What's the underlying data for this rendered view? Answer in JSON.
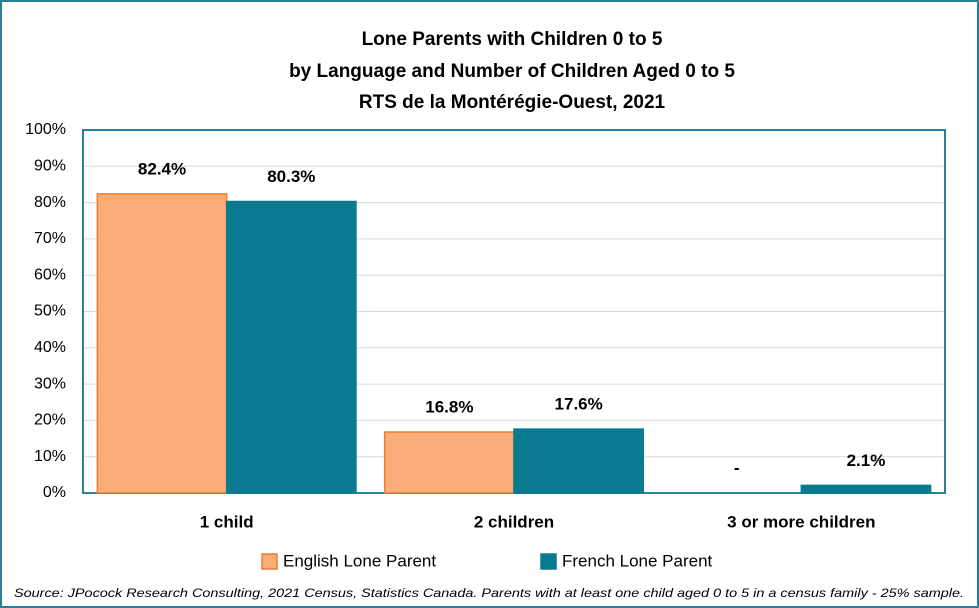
{
  "chart_data": {
    "type": "bar",
    "title": [
      "Lone Parents with Children 0 to 5",
      "by Language and Number of Children Aged 0 to 5",
      "RTS de la Montérégie-Ouest, 2021"
    ],
    "categories": [
      "1 child",
      "2 children",
      "3 or more children"
    ],
    "series": [
      {
        "name": "English Lone Parent",
        "color": "#f9ad78",
        "edge": "#ed7d31",
        "values": [
          82.4,
          16.8,
          null
        ],
        "value_labels": [
          "82.4%",
          "16.8%",
          "-"
        ]
      },
      {
        "name": "French Lone Parent",
        "color": "#0a7a91",
        "edge": "#0a7a91",
        "values": [
          80.3,
          17.6,
          2.1
        ],
        "value_labels": [
          "80.3%",
          "17.6%",
          "2.1%"
        ]
      }
    ],
    "ylim": [
      0,
      100
    ],
    "yticks": [
      {
        "value": 0,
        "label": "0%"
      },
      {
        "value": 10,
        "label": "10%"
      },
      {
        "value": 20,
        "label": "20%"
      },
      {
        "value": 30,
        "label": "30%"
      },
      {
        "value": 40,
        "label": "40%"
      },
      {
        "value": 50,
        "label": "50%"
      },
      {
        "value": 60,
        "label": "60%"
      },
      {
        "value": 70,
        "label": "70%"
      },
      {
        "value": 80,
        "label": "80%"
      },
      {
        "value": 90,
        "label": "90%"
      },
      {
        "value": 100,
        "label": "100%"
      }
    ],
    "grid": true,
    "legend": "bottom",
    "source": "Source: JPocock Research Consulting, 2021 Census, Statistics Canada. Parents with at least one child aged 0 to 5 in a census family - 25% sample."
  }
}
